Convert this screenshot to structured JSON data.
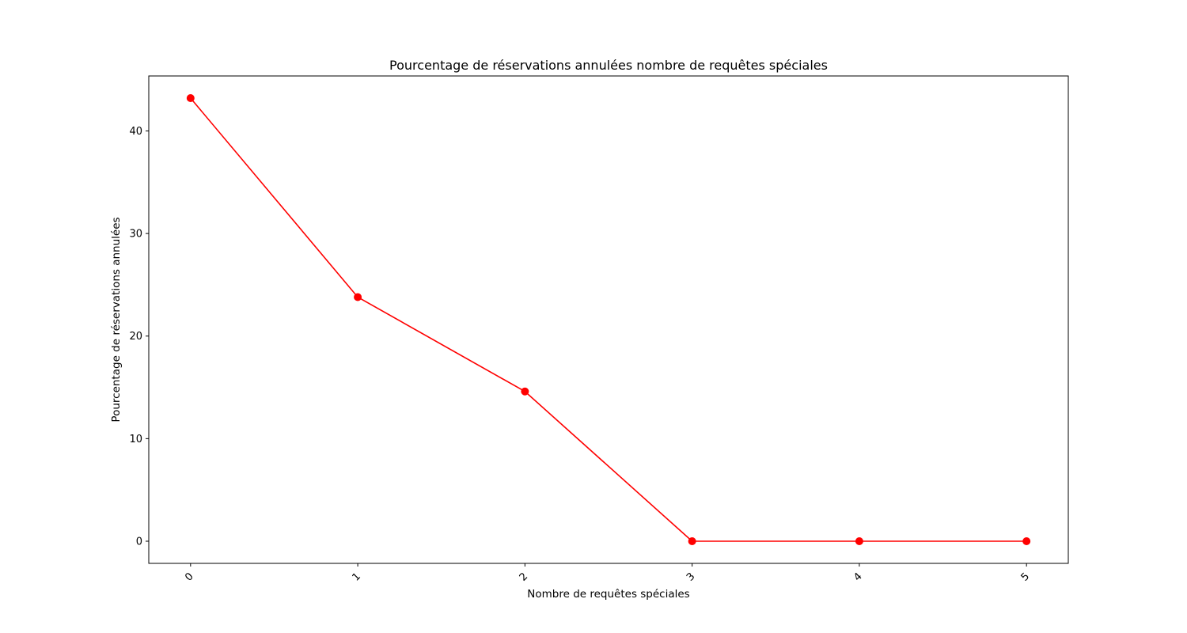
{
  "chart_data": {
    "type": "line",
    "title": "Pourcentage de réservations annulées nombre de requêtes spéciales",
    "xlabel": "Nombre de requêtes spéciales",
    "ylabel": "Pourcentage de réservations annulées",
    "x": [
      0,
      1,
      2,
      3,
      4,
      5
    ],
    "x_tick_labels": [
      "0",
      "1",
      "2",
      "3",
      "4",
      "5"
    ],
    "series": [
      {
        "values": [
          43.2,
          23.8,
          14.6,
          0.0,
          0.0,
          0.0
        ],
        "color": "#ff0000",
        "marker": "circle"
      }
    ],
    "y_ticks": [
      0,
      10,
      20,
      30,
      40
    ],
    "y_tick_labels": [
      "0",
      "10",
      "20",
      "30",
      "40"
    ],
    "xlim": [
      -0.25,
      5.25
    ],
    "ylim": [
      -2.16,
      45.36
    ],
    "grid": false,
    "x_tick_rotation_deg": 45
  }
}
